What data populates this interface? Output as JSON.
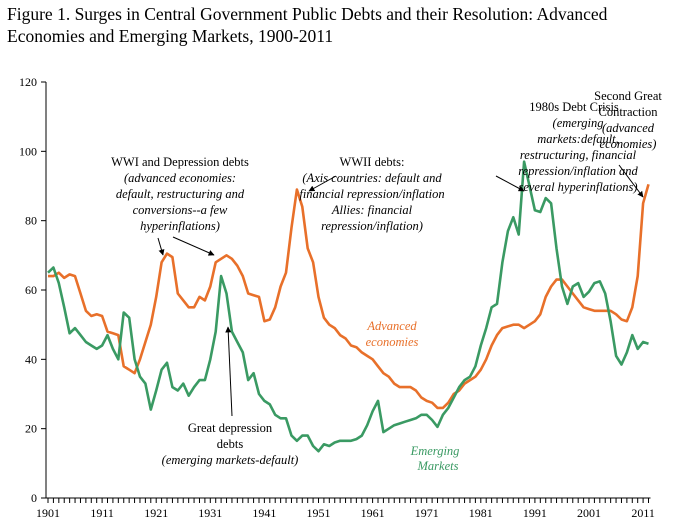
{
  "title_line1": "Figure 1. Surges in Central Government Public Debts and their Resolution: Advanced",
  "title_line2": "Economies and Emerging Markets, 1900-2011",
  "chart_data": {
    "type": "line",
    "title": "Figure 1. Surges in Central Government Public Debts and their Resolution: Advanced Economies and Emerging Markets, 1900-2011",
    "xlabel": "",
    "ylabel": "",
    "ylim": [
      0,
      120
    ],
    "xlim": [
      1901,
      2012
    ],
    "y_ticks": [
      "0",
      "20",
      "40",
      "60",
      "80",
      "100",
      "120"
    ],
    "x_ticks": [
      "1901",
      "1911",
      "1921",
      "1931",
      "1941",
      "1951",
      "1961",
      "1971",
      "1981",
      "1991",
      "2001",
      "2011"
    ],
    "grid": false,
    "legend": "inline labels",
    "x": [
      1901,
      1902,
      1903,
      1904,
      1905,
      1906,
      1907,
      1908,
      1909,
      1910,
      1911,
      1912,
      1913,
      1914,
      1915,
      1916,
      1917,
      1918,
      1919,
      1920,
      1921,
      1922,
      1923,
      1924,
      1925,
      1926,
      1927,
      1928,
      1929,
      1930,
      1931,
      1932,
      1933,
      1934,
      1935,
      1936,
      1937,
      1938,
      1939,
      1940,
      1941,
      1942,
      1943,
      1944,
      1945,
      1946,
      1947,
      1948,
      1949,
      1950,
      1951,
      1952,
      1953,
      1954,
      1955,
      1956,
      1957,
      1958,
      1959,
      1960,
      1961,
      1962,
      1963,
      1964,
      1965,
      1966,
      1967,
      1968,
      1969,
      1970,
      1971,
      1972,
      1973,
      1974,
      1975,
      1976,
      1977,
      1978,
      1979,
      1980,
      1981,
      1982,
      1983,
      1984,
      1985,
      1986,
      1987,
      1988,
      1989,
      1990,
      1991,
      1992,
      1993,
      1994,
      1995,
      1996,
      1997,
      1998,
      1999,
      2000,
      2001,
      2002,
      2003,
      2004,
      2005,
      2006,
      2007,
      2008,
      2009,
      2010,
      2011,
      2012
    ],
    "series": [
      {
        "name": "Advanced economies",
        "color": "#E8702A",
        "values": [
          64,
          64,
          65,
          63.5,
          64.5,
          64,
          59,
          54,
          52.5,
          53,
          52.5,
          48,
          47.5,
          47,
          38,
          37,
          36,
          40,
          45,
          50,
          58,
          68,
          70.5,
          69.5,
          59,
          57,
          55,
          55,
          58,
          57,
          61,
          68,
          69,
          70,
          69,
          67,
          64,
          59,
          58.5,
          58,
          51,
          51.5,
          55,
          61,
          65,
          78,
          89,
          84,
          72,
          68,
          58,
          52,
          50,
          49,
          47,
          46,
          44,
          43.5,
          42,
          41,
          40,
          38,
          36,
          35,
          33,
          32,
          32,
          32,
          31,
          29,
          28,
          27.5,
          26,
          26,
          27.5,
          30,
          31,
          33,
          34,
          35,
          37,
          40,
          44,
          47,
          49,
          49.5,
          50,
          50,
          49,
          50,
          51,
          53,
          58,
          61,
          63,
          63,
          61,
          59,
          57,
          55,
          54.5,
          54,
          54,
          54,
          54,
          53,
          51.5,
          51,
          55,
          64,
          85,
          90.5
        ]
      },
      {
        "name": "Emerging Markets",
        "color": "#3A9A63",
        "values": [
          65,
          66.5,
          62,
          55,
          47.5,
          49,
          47,
          45,
          44,
          43,
          44,
          47,
          43,
          40,
          53.5,
          52,
          40,
          35,
          33,
          25.5,
          31,
          37,
          39,
          32,
          31,
          33,
          29.5,
          32,
          34,
          34,
          40,
          48,
          64,
          59,
          48,
          45,
          42,
          34,
          36,
          30,
          28,
          27,
          24,
          23,
          23,
          18,
          16.5,
          18,
          18,
          15,
          13.5,
          15.5,
          15,
          16,
          16.5,
          16.5,
          16.5,
          17,
          18,
          21,
          25,
          28,
          19,
          20,
          21,
          21.5,
          22,
          22.5,
          23,
          24,
          24,
          22.5,
          20.5,
          24,
          26,
          29,
          32,
          34,
          35,
          38,
          44,
          49,
          55,
          56,
          68,
          77,
          81,
          76,
          97,
          90,
          83,
          82.5,
          86.5,
          85,
          72,
          61,
          56,
          61,
          62,
          58,
          59.5,
          62,
          62.5,
          59,
          51,
          41,
          38.5,
          42,
          47,
          43,
          45,
          44.5
        ]
      }
    ],
    "annotations": {
      "wwi": [
        "WWI and Depression debts",
        "(advanced economies:",
        "default, restructuring and",
        "conversions--a few",
        "hyperinflations)"
      ],
      "wwii": [
        "WWII debts:",
        "(Axis countries: default and",
        "financial repression/inflation",
        "Allies: financial",
        "repression/inflation)"
      ],
      "debt_crisis": [
        "1980s Debt Crisis",
        "(emerging",
        "markets:default,",
        "restructuring, financial",
        "repression/inflation and",
        "several hyperinflations)"
      ],
      "great_contraction": [
        "Second Great",
        "Contraction",
        "(advanced",
        "economies)"
      ],
      "great_depression": [
        "Great depression",
        "debts",
        "(emerging markets-default)"
      ],
      "advanced_label": [
        "Advanced",
        "economies"
      ],
      "emerging_label": [
        "Emerging",
        "Markets"
      ]
    }
  }
}
